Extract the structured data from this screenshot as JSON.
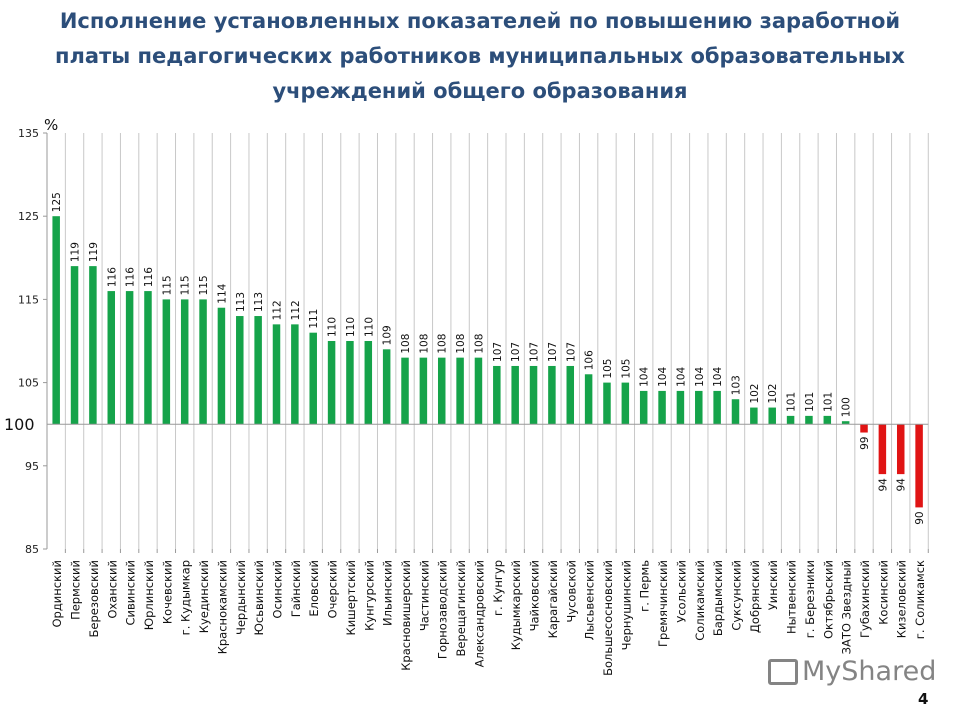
{
  "title_lines": [
    "Исполнение установленных показателей по повышению заработной",
    "платы педагогических работников муниципальных образовательных",
    "учреждений общего образования"
  ],
  "page_number": "4",
  "watermark": "MyShared",
  "colors": {
    "above": "#15a34a",
    "below": "#e01414",
    "title": "#2c4e7a",
    "grid": "#c8c8c8"
  },
  "chart_data": {
    "type": "bar",
    "title": "Исполнение установленных показателей по повышению заработной платы педагогических работников муниципальных образовательных учреждений общего образования",
    "ylabel": "%",
    "ylim": [
      85,
      135
    ],
    "yticks": [
      85,
      95,
      105,
      115,
      125,
      135
    ],
    "baseline": 100,
    "baseline_label": "100",
    "grid": "vertical",
    "categories": [
      "Ординский",
      "Пермский",
      "Березовский",
      "Оханский",
      "Сивинский",
      "Юрлинский",
      "Кочевский",
      "г. Кудымкар",
      "Куединский",
      "Краснокамский",
      "Чердынский",
      "Юсьвинский",
      "Осинский",
      "Гайнский",
      "Еловский",
      "Очерский",
      "Кишертский",
      "Кунгурский",
      "Ильинский",
      "Красновишерский",
      "Частинский",
      "Горнозаводский",
      "Верещагинский",
      "Александровский",
      "г. Кунгур",
      "Кудымкарский",
      "Чайковский",
      "Карагайский",
      "Чусовской",
      "Лысьвенский",
      "Большесосновский",
      "Чернушинский",
      "г. Пермь",
      "Гремячинский",
      "Усольский",
      "Соликамский",
      "Бардымский",
      "Суксунский",
      "Добрянский",
      "Уинский",
      "Нытвенский",
      "г. Березники",
      "Октябрьский",
      "ЗАТО Звездный",
      "Губахинский",
      "Косинский",
      "Кизеловский",
      "г. Соликамск"
    ],
    "values": [
      125,
      119,
      119,
      116,
      116,
      116,
      115,
      115,
      115,
      114,
      113,
      113,
      112,
      112,
      111,
      110,
      110,
      110,
      109,
      108,
      108,
      108,
      108,
      108,
      107,
      107,
      107,
      107,
      107,
      106,
      105,
      105,
      104,
      104,
      104,
      104,
      104,
      103,
      102,
      102,
      101,
      101,
      101,
      100,
      99,
      94,
      94,
      90
    ]
  }
}
